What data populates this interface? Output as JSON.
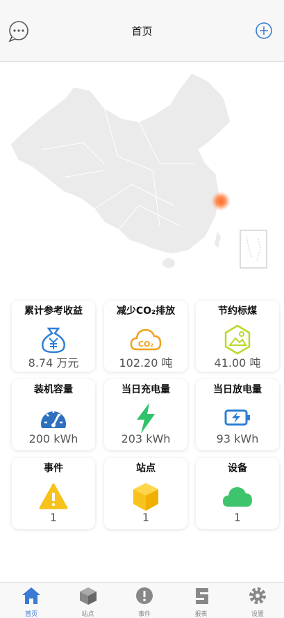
{
  "header": {
    "title": "首页"
  },
  "cards": [
    {
      "title": "累计参考收益",
      "value": "8.74 万元"
    },
    {
      "title": "减少CO₂排放",
      "value": "102.20 吨",
      "icon_text": "CO₂"
    },
    {
      "title": "节约标煤",
      "value": "41.00 吨"
    },
    {
      "title": "装机容量",
      "value": "200 kWh"
    },
    {
      "title": "当日充电量",
      "value": "203 kWh"
    },
    {
      "title": "当日放电量",
      "value": "93 kWh"
    },
    {
      "title": "事件",
      "value": "1"
    },
    {
      "title": "站点",
      "value": "1"
    },
    {
      "title": "设备",
      "value": "1"
    }
  ],
  "tabs": [
    "首页",
    "站点",
    "事件",
    "报表",
    "设置"
  ]
}
